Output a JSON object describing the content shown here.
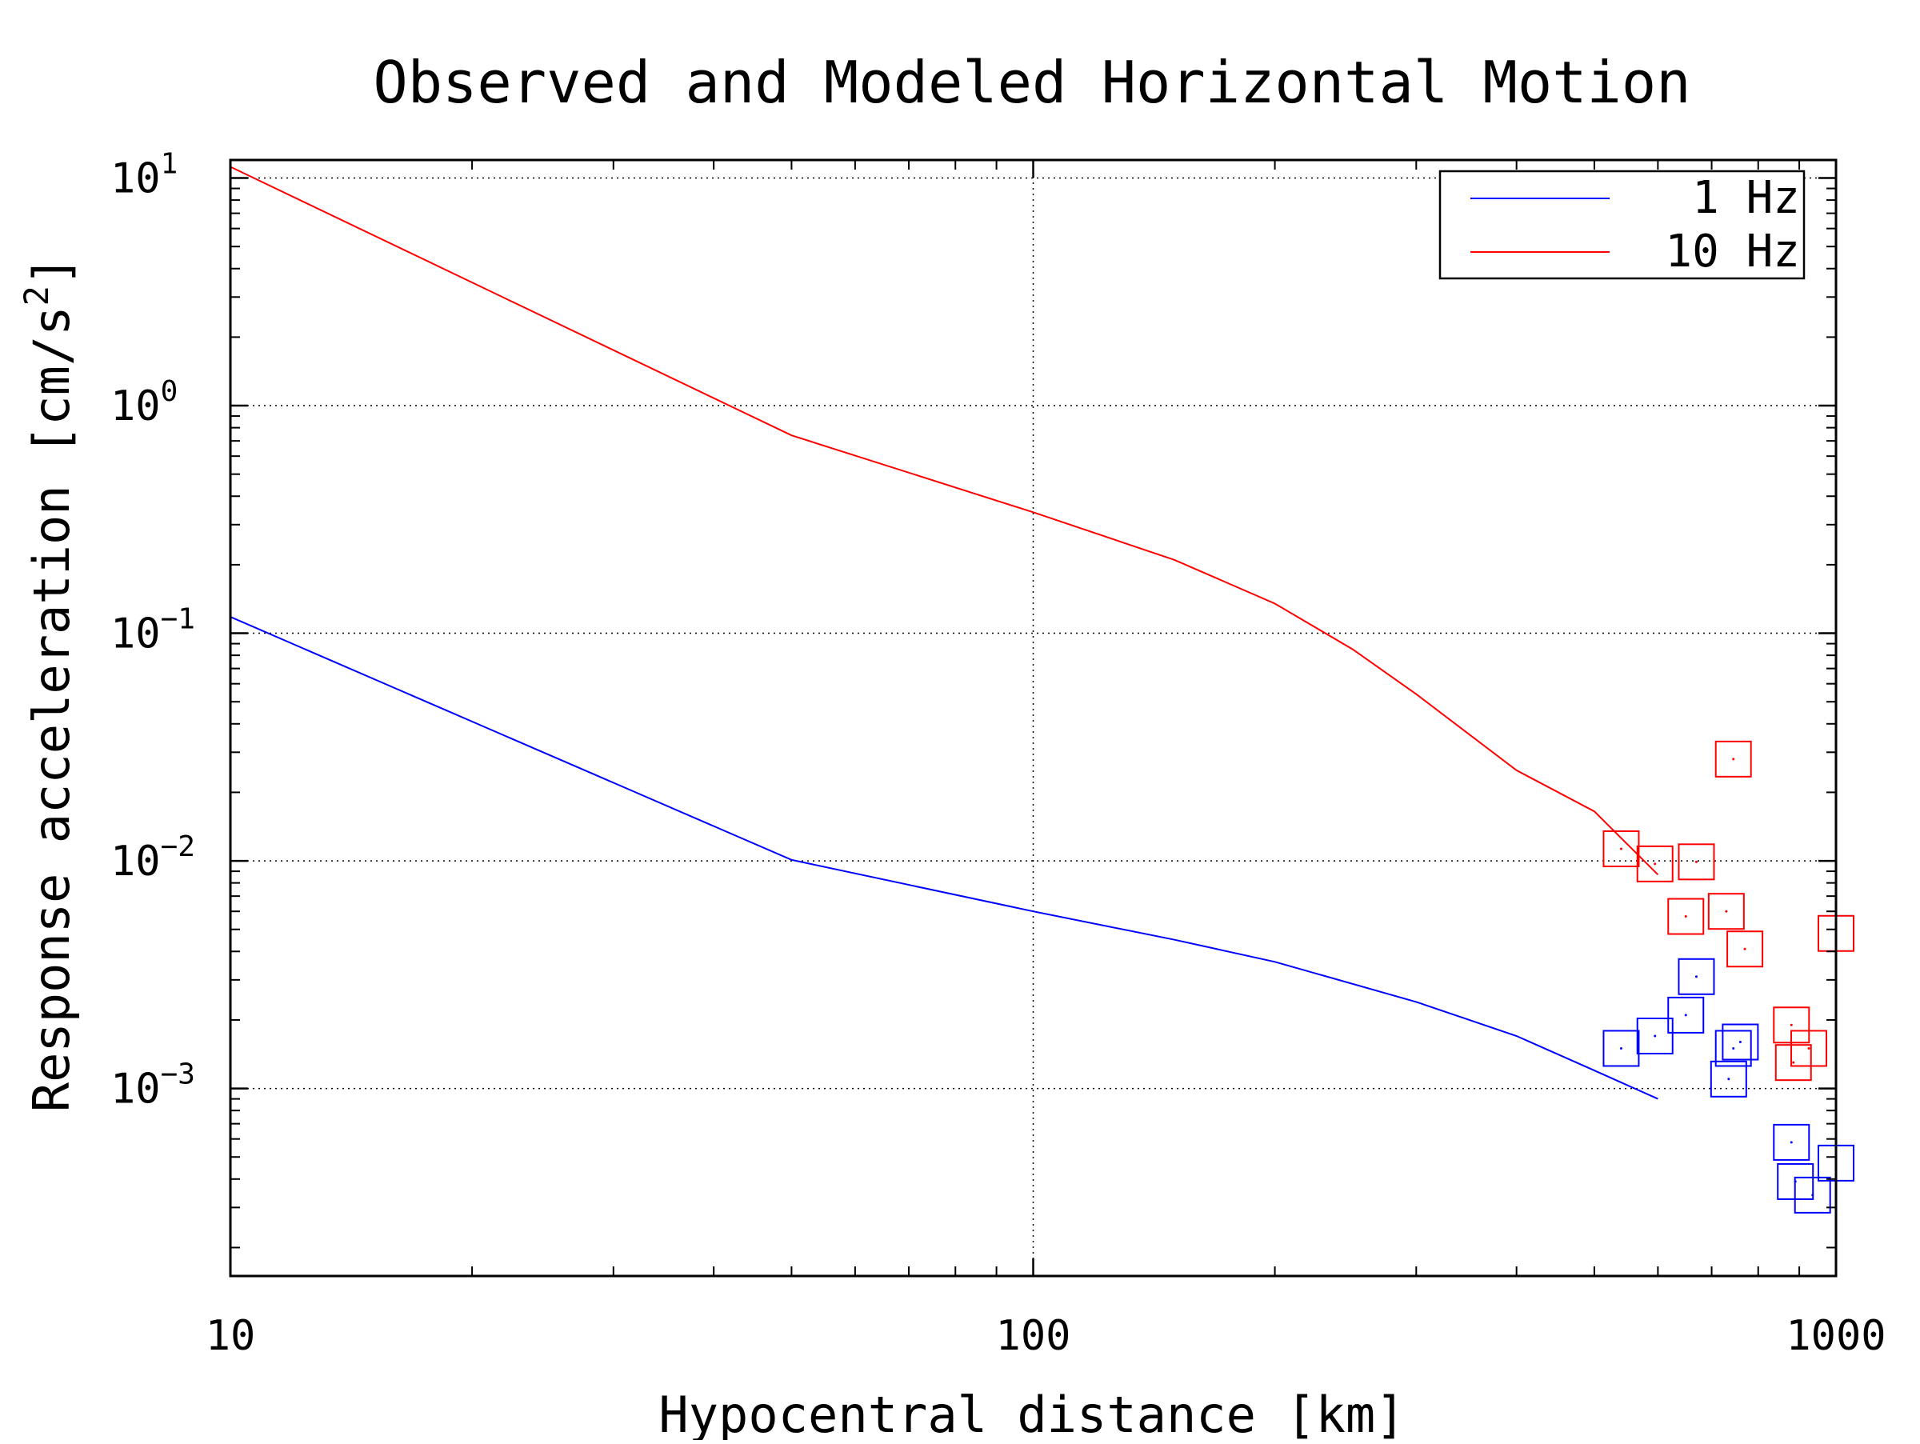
{
  "chart_data": {
    "type": "line",
    "title": "Observed and Modeled Horizontal Motion",
    "xlabel": "Hypocentral distance [km]",
    "ylabel": "Response acceleration [cm/s",
    "ylabel_sup": "2",
    "ylabel_end": "]",
    "x_scale": "log",
    "y_scale": "log",
    "xlim": [
      10,
      1000
    ],
    "ylim": [
      0.00015,
      12
    ],
    "grid": true,
    "legend_position": "top-right",
    "x_ticks": [
      {
        "value": 10,
        "label": "10"
      },
      {
        "value": 100,
        "label": "100"
      },
      {
        "value": 1000,
        "label": "1000"
      }
    ],
    "y_ticks": [
      {
        "value": 10,
        "base": "10",
        "exp": "1"
      },
      {
        "value": 1,
        "base": "10",
        "exp": "0"
      },
      {
        "value": 0.1,
        "base": "10",
        "exp": "−1"
      },
      {
        "value": 0.01,
        "base": "10",
        "exp": "−2"
      },
      {
        "value": 0.001,
        "base": "10",
        "exp": "−3"
      }
    ],
    "series": [
      {
        "name": "1 Hz",
        "color": "#0000ff",
        "kind": "line",
        "x": [
          10,
          50,
          100,
          150,
          200,
          300,
          400,
          500,
          600
        ],
        "y": [
          0.118,
          0.0101,
          0.006,
          0.0045,
          0.0036,
          0.0024,
          0.0017,
          0.0012,
          0.0009
        ]
      },
      {
        "name": "10 Hz",
        "color": "#ff0000",
        "kind": "line",
        "x": [
          10,
          50,
          100,
          150,
          200,
          250,
          300,
          400,
          500,
          600
        ],
        "y": [
          11.2,
          0.74,
          0.34,
          0.21,
          0.135,
          0.085,
          0.054,
          0.025,
          0.0165,
          0.0087
        ]
      },
      {
        "color": "#0000ff",
        "kind": "scatter",
        "x": [
          540,
          595,
          650,
          670,
          735,
          745,
          760,
          880,
          890,
          935,
          1000
        ],
        "y": [
          0.0015,
          0.0017,
          0.0021,
          0.0031,
          0.0011,
          0.0015,
          0.0016,
          0.00058,
          0.00039,
          0.00034,
          0.00047
        ]
      },
      {
        "color": "#ff0000",
        "kind": "scatter",
        "x": [
          540,
          595,
          650,
          670,
          730,
          745,
          770,
          880,
          885,
          925,
          1000
        ],
        "y": [
          0.0113,
          0.0097,
          0.0057,
          0.0099,
          0.006,
          0.028,
          0.0041,
          0.0019,
          0.0013,
          0.0015,
          0.0048
        ]
      }
    ]
  }
}
